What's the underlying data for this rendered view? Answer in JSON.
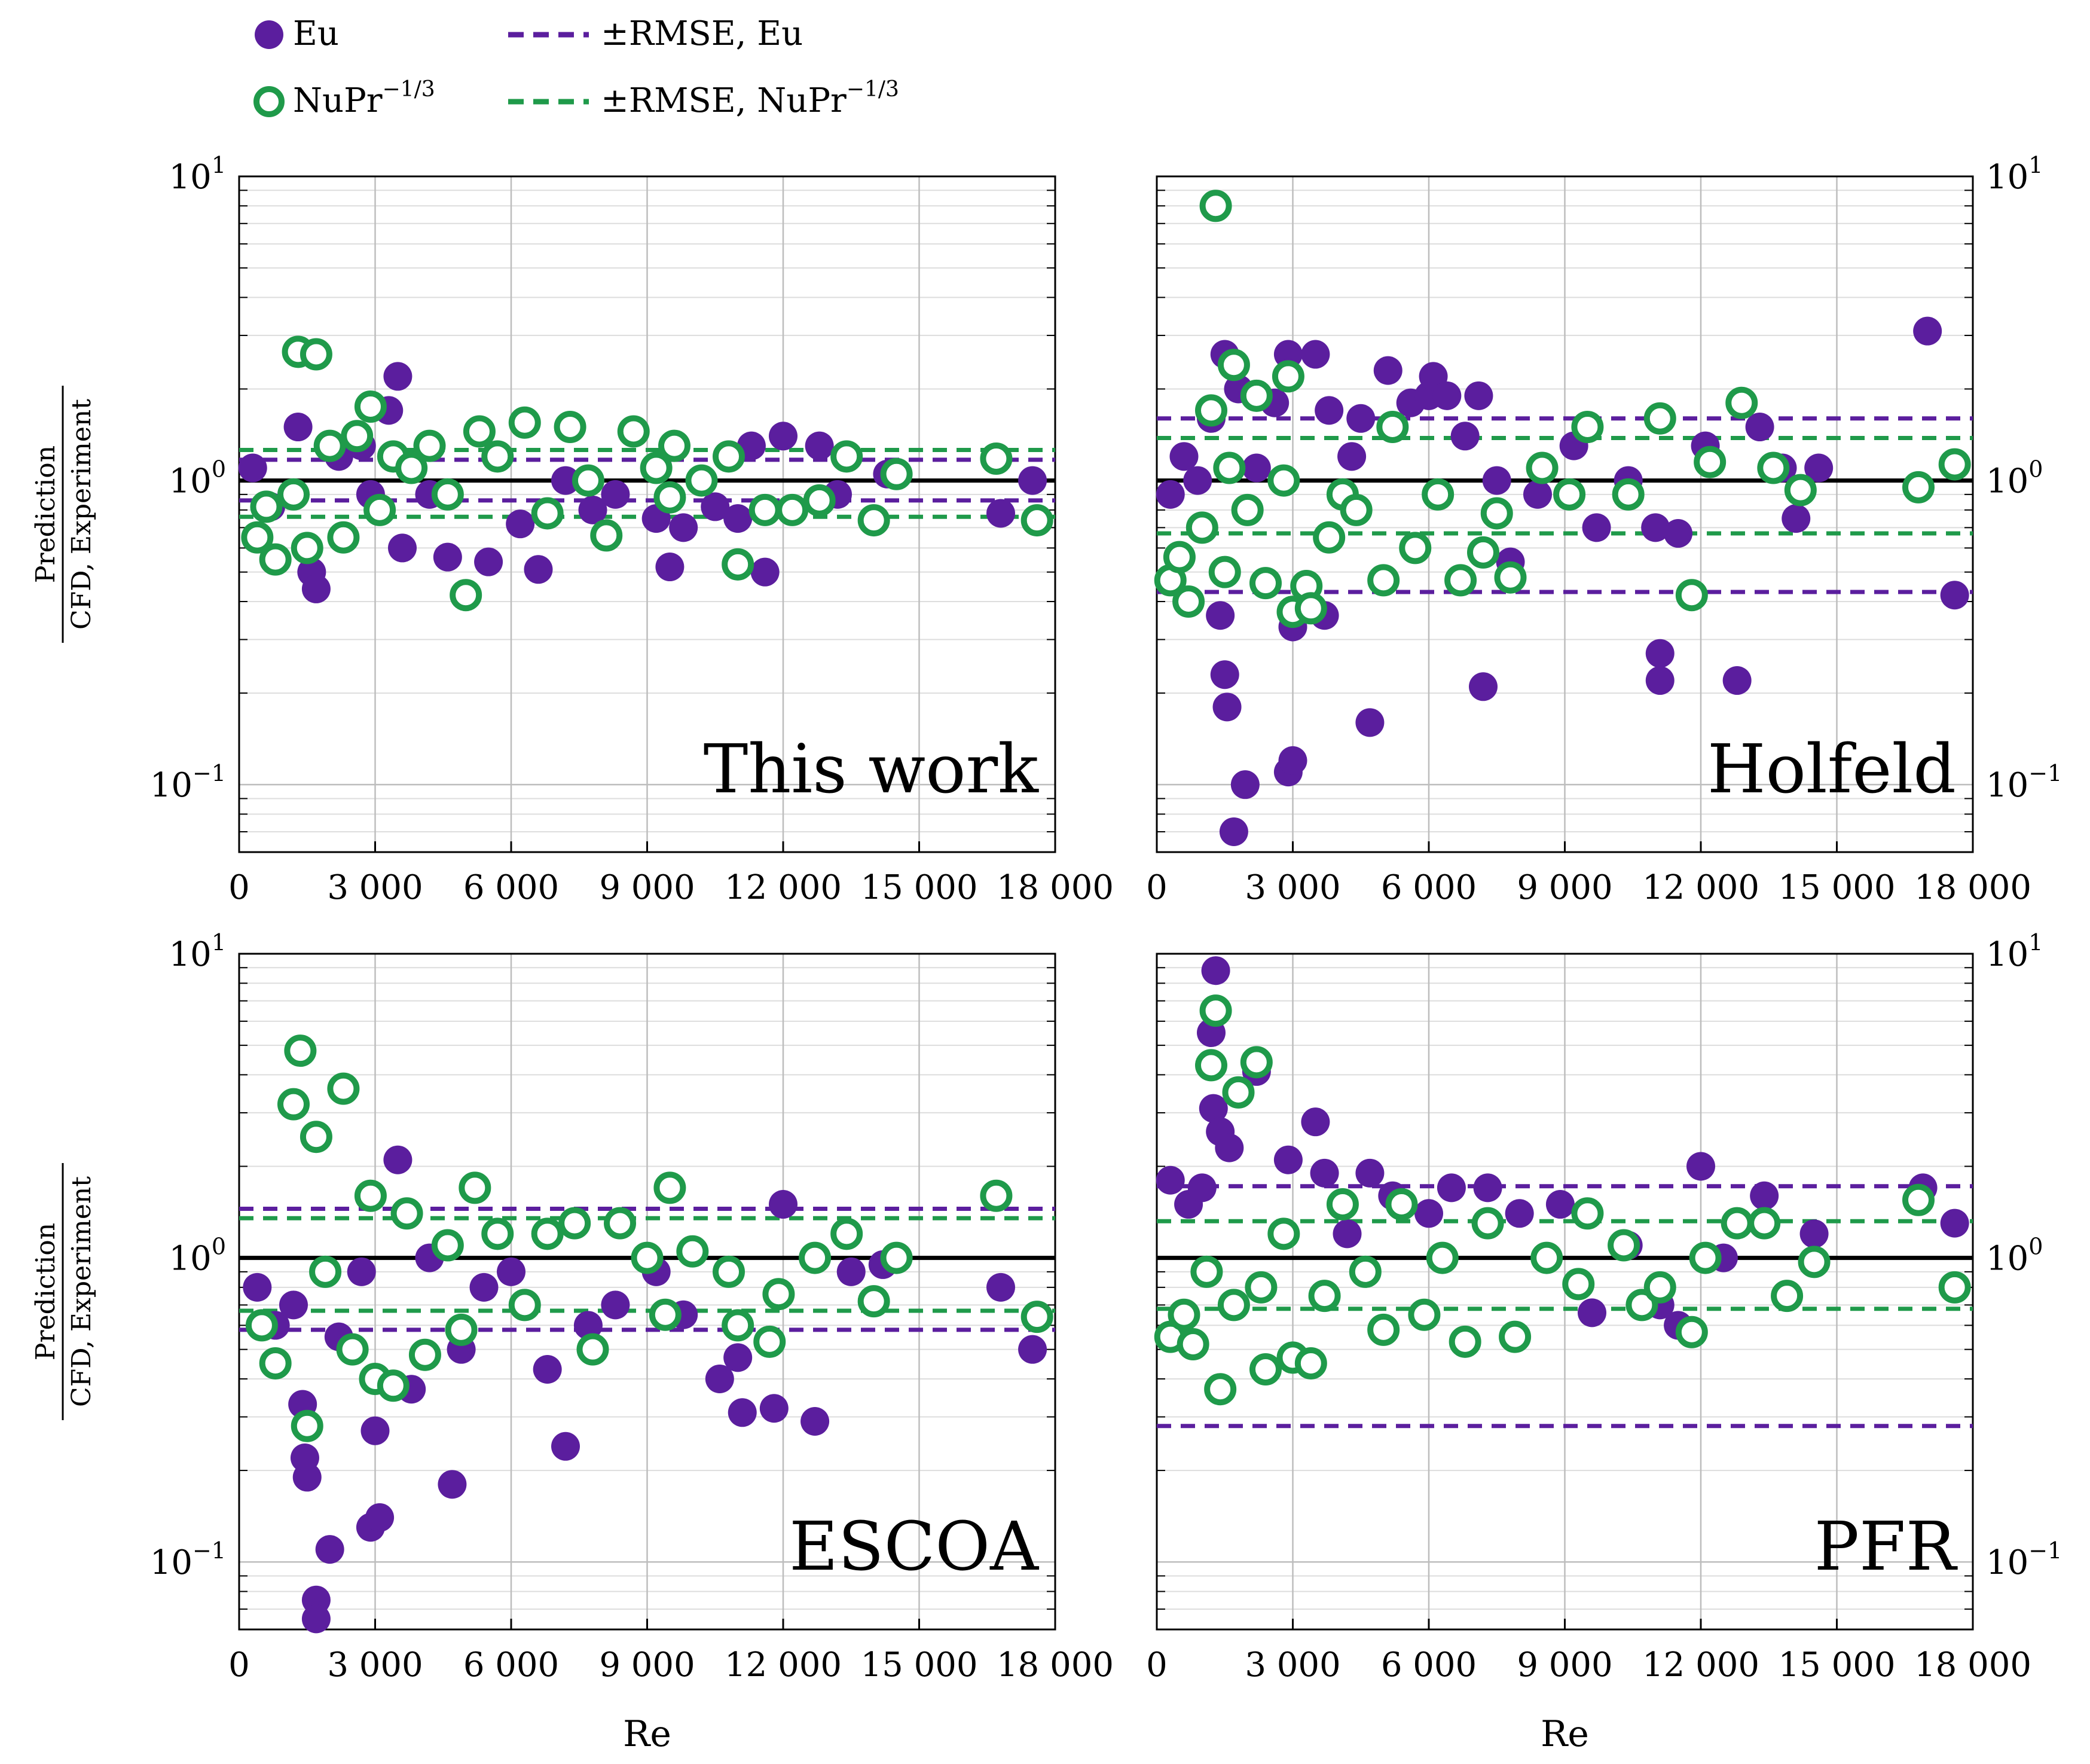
{
  "colors": {
    "eu": "#5b1e9e",
    "nu": "#1f9a4a",
    "unity": "#000000",
    "grid": "#bdbdbd"
  },
  "legend": {
    "eu": "Eu",
    "nu_base": "NuPr",
    "nu_exp": "−1/3",
    "rmse_eu": "±RMSE, Eu",
    "rmse_nu_base": "±RMSE, NuPr",
    "rmse_nu_exp": "−1/3"
  },
  "axis": {
    "xlabel": "Re",
    "ylabel_num": "Prediction",
    "ylabel_den": "CFD, Experiment",
    "x_ticks": [
      "0",
      "3 000",
      "6 000",
      "9 000",
      "12 000",
      "15 000",
      "18 000"
    ],
    "y_tick_base": "10",
    "y_tick_exp_hi": "1",
    "y_tick_exp_mid": "0",
    "y_tick_exp_lo": "−1"
  },
  "chart_data": [
    {
      "type": "scatter",
      "title": "This work",
      "xlim": [
        0,
        18000
      ],
      "ylim": [
        0.06,
        10
      ],
      "yscale": "log",
      "rmse_eu": [
        0.86,
        1.17
      ],
      "rmse_nu": [
        0.76,
        1.26
      ],
      "eu": [
        [
          300,
          1.1
        ],
        [
          700,
          0.82
        ],
        [
          1300,
          1.5
        ],
        [
          1600,
          0.5
        ],
        [
          1700,
          0.44
        ],
        [
          2200,
          1.2
        ],
        [
          2700,
          1.3
        ],
        [
          2900,
          0.9
        ],
        [
          3300,
          1.7
        ],
        [
          3500,
          2.2
        ],
        [
          3600,
          0.6
        ],
        [
          4200,
          0.9
        ],
        [
          4600,
          0.56
        ],
        [
          5500,
          0.54
        ],
        [
          6200,
          0.72
        ],
        [
          6600,
          0.51
        ],
        [
          7200,
          1.0
        ],
        [
          7800,
          0.8
        ],
        [
          8300,
          0.9
        ],
        [
          9200,
          0.75
        ],
        [
          9500,
          0.52
        ],
        [
          9800,
          0.7
        ],
        [
          10500,
          0.82
        ],
        [
          11000,
          0.75
        ],
        [
          11300,
          1.3
        ],
        [
          11600,
          0.5
        ],
        [
          12000,
          1.4
        ],
        [
          12800,
          1.3
        ],
        [
          13200,
          0.9
        ],
        [
          14300,
          1.05
        ],
        [
          16800,
          0.78
        ],
        [
          17500,
          1.0
        ]
      ],
      "nu": [
        [
          400,
          0.65
        ],
        [
          600,
          0.82
        ],
        [
          800,
          0.55
        ],
        [
          1200,
          0.9
        ],
        [
          1300,
          2.65
        ],
        [
          1500,
          0.6
        ],
        [
          1700,
          2.6
        ],
        [
          2000,
          1.3
        ],
        [
          2300,
          0.65
        ],
        [
          2600,
          1.4
        ],
        [
          2900,
          1.75
        ],
        [
          3100,
          0.8
        ],
        [
          3400,
          1.2
        ],
        [
          3800,
          1.1
        ],
        [
          4200,
          1.3
        ],
        [
          4600,
          0.9
        ],
        [
          5000,
          0.42
        ],
        [
          5300,
          1.45
        ],
        [
          5700,
          1.2
        ],
        [
          6300,
          1.55
        ],
        [
          6800,
          0.78
        ],
        [
          7300,
          1.5
        ],
        [
          7700,
          1.0
        ],
        [
          8100,
          0.66
        ],
        [
          8700,
          1.45
        ],
        [
          9200,
          1.1
        ],
        [
          9500,
          0.88
        ],
        [
          9600,
          1.3
        ],
        [
          10200,
          1.0
        ],
        [
          10800,
          1.2
        ],
        [
          11000,
          0.53
        ],
        [
          11600,
          0.8
        ],
        [
          12200,
          0.8
        ],
        [
          12800,
          0.86
        ],
        [
          13400,
          1.2
        ],
        [
          14000,
          0.74
        ],
        [
          14500,
          1.05
        ],
        [
          16700,
          1.18
        ],
        [
          17600,
          0.74
        ]
      ]
    },
    {
      "type": "scatter",
      "title": "Holfeld",
      "xlim": [
        0,
        18000
      ],
      "ylim": [
        0.06,
        10
      ],
      "yscale": "log",
      "rmse_eu": [
        0.43,
        1.6
      ],
      "rmse_nu": [
        0.67,
        1.38
      ],
      "eu": [
        [
          300,
          0.9
        ],
        [
          600,
          1.2
        ],
        [
          900,
          1.0
        ],
        [
          1200,
          1.6
        ],
        [
          1400,
          0.36
        ],
        [
          1500,
          0.23
        ],
        [
          1550,
          0.18
        ],
        [
          1500,
          2.6
        ],
        [
          1800,
          2.0
        ],
        [
          1700,
          0.07
        ],
        [
          1950,
          0.1
        ],
        [
          2200,
          1.1
        ],
        [
          2600,
          1.8
        ],
        [
          2900,
          2.6
        ],
        [
          2900,
          0.11
        ],
        [
          3000,
          0.12
        ],
        [
          3000,
          0.33
        ],
        [
          3500,
          2.6
        ],
        [
          3700,
          0.36
        ],
        [
          3800,
          1.7
        ],
        [
          4300,
          1.2
        ],
        [
          4500,
          1.6
        ],
        [
          4700,
          0.16
        ],
        [
          5100,
          2.3
        ],
        [
          5600,
          1.8
        ],
        [
          6000,
          1.9
        ],
        [
          6100,
          2.2
        ],
        [
          6400,
          1.9
        ],
        [
          6800,
          1.4
        ],
        [
          7100,
          1.9
        ],
        [
          7200,
          0.21
        ],
        [
          7500,
          1.0
        ],
        [
          7800,
          0.54
        ],
        [
          8400,
          0.9
        ],
        [
          9200,
          1.3
        ],
        [
          9700,
          0.7
        ],
        [
          10400,
          1.0
        ],
        [
          11000,
          0.7
        ],
        [
          11100,
          0.27
        ],
        [
          11100,
          0.22
        ],
        [
          11500,
          0.67
        ],
        [
          12100,
          1.3
        ],
        [
          12800,
          0.22
        ],
        [
          13300,
          1.5
        ],
        [
          13800,
          1.1
        ],
        [
          14100,
          0.75
        ],
        [
          14600,
          1.1
        ],
        [
          17000,
          3.1
        ],
        [
          17600,
          0.42
        ]
      ],
      "nu": [
        [
          300,
          0.47
        ],
        [
          500,
          0.56
        ],
        [
          700,
          0.4
        ],
        [
          1000,
          0.7
        ],
        [
          1200,
          1.7
        ],
        [
          1300,
          8.0
        ],
        [
          1500,
          0.5
        ],
        [
          1600,
          1.1
        ],
        [
          1700,
          2.4
        ],
        [
          2000,
          0.8
        ],
        [
          2200,
          1.9
        ],
        [
          2400,
          0.46
        ],
        [
          2800,
          1.0
        ],
        [
          2900,
          2.2
        ],
        [
          3000,
          0.37
        ],
        [
          3300,
          0.45
        ],
        [
          3400,
          0.38
        ],
        [
          3800,
          0.65
        ],
        [
          4100,
          0.9
        ],
        [
          4400,
          0.8
        ],
        [
          5000,
          0.47
        ],
        [
          5200,
          1.5
        ],
        [
          5700,
          0.6
        ],
        [
          6200,
          0.9
        ],
        [
          6700,
          0.47
        ],
        [
          7200,
          0.58
        ],
        [
          7500,
          0.78
        ],
        [
          7800,
          0.48
        ],
        [
          8500,
          1.1
        ],
        [
          9100,
          0.9
        ],
        [
          9500,
          1.5
        ],
        [
          10400,
          0.9
        ],
        [
          11100,
          1.6
        ],
        [
          11800,
          0.42
        ],
        [
          12200,
          1.15
        ],
        [
          12900,
          1.8
        ],
        [
          13600,
          1.1
        ],
        [
          14200,
          0.93
        ],
        [
          16800,
          0.95
        ],
        [
          17600,
          1.13
        ]
      ]
    },
    {
      "type": "scatter",
      "title": "ESCOA",
      "xlim": [
        0,
        18000
      ],
      "ylim": [
        0.06,
        10
      ],
      "yscale": "log",
      "rmse_eu": [
        0.58,
        1.45
      ],
      "rmse_nu": [
        0.67,
        1.35
      ],
      "eu": [
        [
          400,
          0.8
        ],
        [
          800,
          0.6
        ],
        [
          1200,
          0.7
        ],
        [
          1400,
          0.33
        ],
        [
          1450,
          0.22
        ],
        [
          1500,
          0.19
        ],
        [
          1700,
          0.075
        ],
        [
          1700,
          0.065
        ],
        [
          2000,
          0.11
        ],
        [
          2200,
          0.55
        ],
        [
          2700,
          0.9
        ],
        [
          2900,
          0.13
        ],
        [
          3000,
          0.27
        ],
        [
          3100,
          0.14
        ],
        [
          3500,
          2.1
        ],
        [
          3800,
          0.37
        ],
        [
          4200,
          1.0
        ],
        [
          4700,
          0.18
        ],
        [
          4900,
          0.5
        ],
        [
          5400,
          0.8
        ],
        [
          6000,
          0.9
        ],
        [
          6800,
          0.43
        ],
        [
          7200,
          0.24
        ],
        [
          7700,
          0.6
        ],
        [
          8300,
          0.7
        ],
        [
          9200,
          0.9
        ],
        [
          9800,
          0.65
        ],
        [
          10600,
          0.4
        ],
        [
          11000,
          0.47
        ],
        [
          11100,
          0.31
        ],
        [
          11800,
          0.32
        ],
        [
          12000,
          1.5
        ],
        [
          12700,
          0.29
        ],
        [
          13500,
          0.9
        ],
        [
          14200,
          0.95
        ],
        [
          16800,
          0.8
        ],
        [
          17500,
          0.5
        ]
      ],
      "nu": [
        [
          500,
          0.6
        ],
        [
          800,
          0.45
        ],
        [
          1200,
          3.2
        ],
        [
          1350,
          4.8
        ],
        [
          1500,
          0.28
        ],
        [
          1700,
          2.5
        ],
        [
          1900,
          0.9
        ],
        [
          2300,
          3.6
        ],
        [
          2500,
          0.5
        ],
        [
          2900,
          1.6
        ],
        [
          3000,
          0.4
        ],
        [
          3400,
          0.38
        ],
        [
          3700,
          1.4
        ],
        [
          4100,
          0.48
        ],
        [
          4600,
          1.1
        ],
        [
          4900,
          0.58
        ],
        [
          5200,
          1.7
        ],
        [
          5700,
          1.2
        ],
        [
          6300,
          0.7
        ],
        [
          6800,
          1.2
        ],
        [
          7400,
          1.3
        ],
        [
          7800,
          0.5
        ],
        [
          8400,
          1.3
        ],
        [
          9000,
          1.0
        ],
        [
          9400,
          0.65
        ],
        [
          9500,
          1.7
        ],
        [
          10000,
          1.05
        ],
        [
          10800,
          0.9
        ],
        [
          11000,
          0.6
        ],
        [
          11700,
          0.53
        ],
        [
          11900,
          0.76
        ],
        [
          12700,
          1.0
        ],
        [
          13400,
          1.2
        ],
        [
          14000,
          0.72
        ],
        [
          14500,
          1.0
        ],
        [
          16700,
          1.6
        ],
        [
          17600,
          0.64
        ]
      ]
    },
    {
      "type": "scatter",
      "title": "PFR",
      "xlim": [
        0,
        18000
      ],
      "ylim": [
        0.06,
        10
      ],
      "yscale": "log",
      "rmse_eu": [
        0.28,
        1.72
      ],
      "rmse_nu": [
        0.68,
        1.32
      ],
      "eu": [
        [
          300,
          1.8
        ],
        [
          700,
          1.5
        ],
        [
          1000,
          1.7
        ],
        [
          1200,
          5.5
        ],
        [
          1300,
          8.8
        ],
        [
          1250,
          3.1
        ],
        [
          1400,
          2.6
        ],
        [
          1600,
          2.3
        ],
        [
          2200,
          4.1
        ],
        [
          2900,
          2.1
        ],
        [
          3500,
          2.8
        ],
        [
          3700,
          1.9
        ],
        [
          4200,
          1.2
        ],
        [
          4700,
          1.9
        ],
        [
          5200,
          1.6
        ],
        [
          6000,
          1.4
        ],
        [
          6500,
          1.7
        ],
        [
          7300,
          1.7
        ],
        [
          8000,
          1.4
        ],
        [
          8900,
          1.5
        ],
        [
          9600,
          0.66
        ],
        [
          10400,
          1.1
        ],
        [
          11100,
          0.7
        ],
        [
          11500,
          0.6
        ],
        [
          12000,
          2.0
        ],
        [
          12500,
          1.0
        ],
        [
          13400,
          1.6
        ],
        [
          14500,
          1.2
        ],
        [
          16900,
          1.7
        ],
        [
          17600,
          1.3
        ]
      ],
      "nu": [
        [
          300,
          0.55
        ],
        [
          600,
          0.65
        ],
        [
          800,
          0.52
        ],
        [
          1100,
          0.9
        ],
        [
          1200,
          4.3
        ],
        [
          1300,
          6.5
        ],
        [
          1400,
          0.37
        ],
        [
          1700,
          0.7
        ],
        [
          1800,
          3.5
        ],
        [
          2200,
          4.4
        ],
        [
          2300,
          0.8
        ],
        [
          2400,
          0.43
        ],
        [
          2800,
          1.2
        ],
        [
          3000,
          0.47
        ],
        [
          3400,
          0.45
        ],
        [
          3700,
          0.75
        ],
        [
          4100,
          1.5
        ],
        [
          4600,
          0.9
        ],
        [
          5000,
          0.58
        ],
        [
          5400,
          1.5
        ],
        [
          5900,
          0.65
        ],
        [
          6300,
          1.0
        ],
        [
          6800,
          0.53
        ],
        [
          7300,
          1.3
        ],
        [
          7900,
          0.55
        ],
        [
          8600,
          1.0
        ],
        [
          9300,
          0.82
        ],
        [
          9500,
          1.4
        ],
        [
          10300,
          1.1
        ],
        [
          10700,
          0.7
        ],
        [
          11100,
          0.8
        ],
        [
          11800,
          0.57
        ],
        [
          12100,
          1.0
        ],
        [
          12800,
          1.3
        ],
        [
          13400,
          1.3
        ],
        [
          13900,
          0.75
        ],
        [
          14500,
          0.97
        ],
        [
          16800,
          1.55
        ],
        [
          17600,
          0.8
        ]
      ]
    }
  ]
}
